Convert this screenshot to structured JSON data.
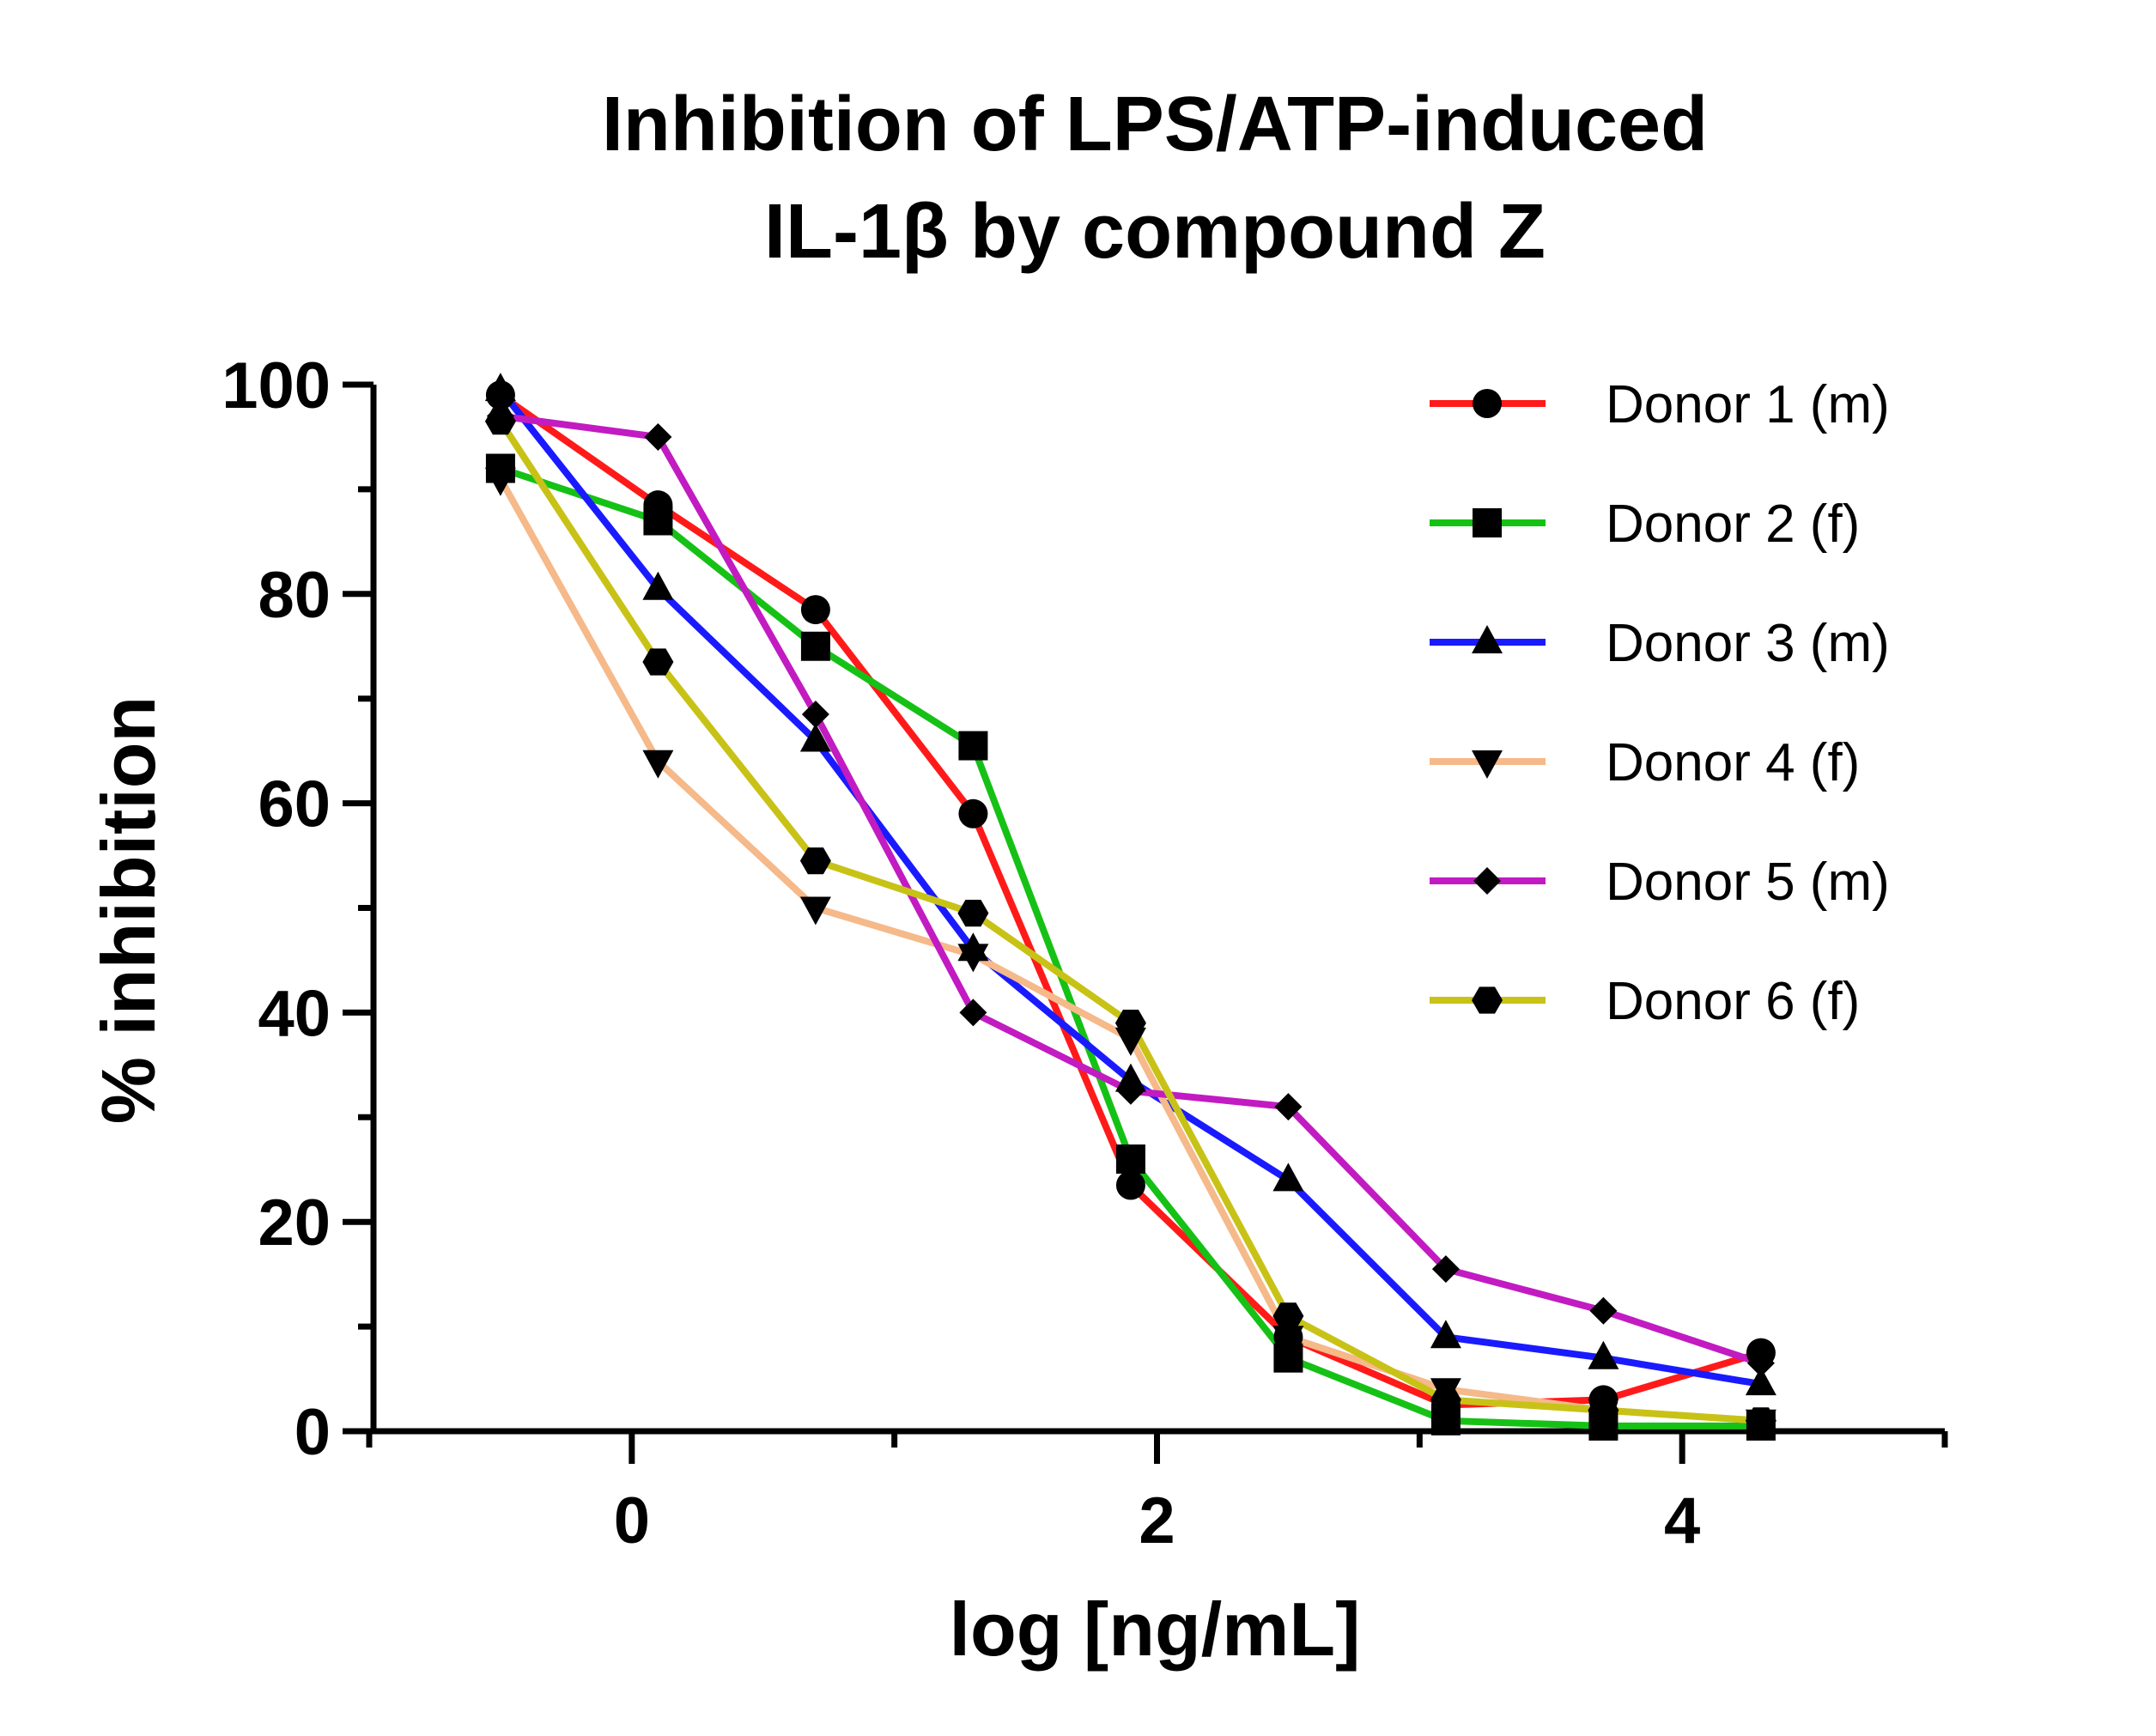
{
  "chart_data": {
    "type": "line",
    "title": [
      "Inhibition of LPS/ATP-induced",
      "IL-1β by compound Z"
    ],
    "xlabel": "log [ng/mL]",
    "ylabel": "% inhibition",
    "xlim": [
      -1,
      5
    ],
    "ylim": [
      0,
      100
    ],
    "x_ticks": [
      0,
      2,
      4
    ],
    "x_minor_ticks": [
      -1,
      1,
      3,
      5
    ],
    "y_ticks": [
      0,
      20,
      40,
      60,
      80,
      100
    ],
    "y_minor_ticks": [
      10,
      30,
      50,
      70,
      90
    ],
    "grid": false,
    "legend_position": "top-right",
    "x": [
      -0.5,
      0.1,
      0.7,
      1.3,
      1.9,
      2.5,
      3.1,
      3.7,
      4.3
    ],
    "series": [
      {
        "name": "Donor 1 (m)",
        "color": "#ff1a1a",
        "marker": "circle",
        "values": [
          99,
          88.5,
          78.5,
          59,
          23.5,
          9,
          2.5,
          3,
          7.5
        ]
      },
      {
        "name": "Donor 2 (f)",
        "color": "#16c116",
        "marker": "square",
        "values": [
          92,
          87,
          75,
          65.5,
          26,
          7,
          1,
          0.5,
          0.5
        ]
      },
      {
        "name": "Donor 3 (m)",
        "color": "#1a1aff",
        "marker": "triangle",
        "values": [
          99.5,
          80.5,
          66,
          46,
          33.5,
          24,
          9,
          7,
          4.5
        ]
      },
      {
        "name": "Donor 4 (f)",
        "color": "#f5b98a",
        "marker": "triangle-down",
        "values": [
          91,
          64,
          50,
          45.5,
          37.5,
          9,
          4,
          2,
          1
        ]
      },
      {
        "name": "Donor 5 (m)",
        "color": "#c21bc2",
        "marker": "diamond",
        "values": [
          97,
          95,
          68.5,
          40,
          32.5,
          31,
          15.5,
          11.5,
          6.5
        ]
      },
      {
        "name": "Donor 6 (f)",
        "color": "#c8c217",
        "marker": "hexagon",
        "values": [
          96.5,
          73.5,
          54.5,
          49.5,
          39,
          11,
          3,
          2,
          1
        ]
      }
    ]
  }
}
